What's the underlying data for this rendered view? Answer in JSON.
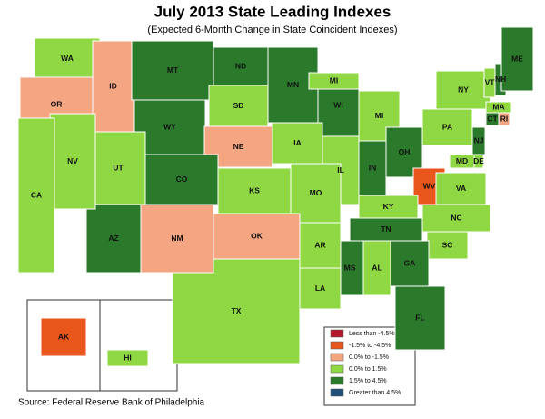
{
  "title": "July 2013 State Leading Indexes",
  "subtitle": "(Expected 6-Month Change in State Coincident Indexes)",
  "source": "Source: Federal Reserve Bank of Philadelphia",
  "legend": [
    {
      "label": "Less than -4.5%",
      "color": "#b2182b"
    },
    {
      "label": "-1.5% to -4.5%",
      "color": "#e8561c"
    },
    {
      "label": "0.0% to -1.5%",
      "color": "#f4a582"
    },
    {
      "label": "0.0% to  1.5%",
      "color": "#8fd843"
    },
    {
      "label": "1.5% to  4.5%",
      "color": "#2b7a2b"
    },
    {
      "label": "Greater than 4.5%",
      "color": "#1f4e79"
    }
  ],
  "states": [
    {
      "label": "WA",
      "color": "#8fd843"
    },
    {
      "label": "OR",
      "color": "#f4a582"
    },
    {
      "label": "ID",
      "color": "#f4a582"
    },
    {
      "label": "MT",
      "color": "#2b7a2b"
    },
    {
      "label": "ND",
      "color": "#2b7a2b"
    },
    {
      "label": "MN",
      "color": "#2b7a2b"
    },
    {
      "label": "WI",
      "color": "#2b7a2b"
    },
    {
      "label": "MI",
      "color": "#8fd843"
    },
    {
      "label": "MI",
      "color": "#8fd843"
    },
    {
      "label": "WY",
      "color": "#2b7a2b"
    },
    {
      "label": "SD",
      "color": "#8fd843"
    },
    {
      "label": "NE",
      "color": "#f4a582"
    },
    {
      "label": "IA",
      "color": "#8fd843"
    },
    {
      "label": "IL",
      "color": "#8fd843"
    },
    {
      "label": "IN",
      "color": "#2b7a2b"
    },
    {
      "label": "OH",
      "color": "#2b7a2b"
    },
    {
      "label": "PA",
      "color": "#8fd843"
    },
    {
      "label": "NY",
      "color": "#8fd843"
    },
    {
      "label": "VT",
      "color": "#8fd843"
    },
    {
      "label": "NH",
      "color": "#2b7a2b"
    },
    {
      "label": "ME",
      "color": "#2b7a2b"
    },
    {
      "label": "MA",
      "color": "#8fd843"
    },
    {
      "label": "CT",
      "color": "#2b7a2b"
    },
    {
      "label": "RI",
      "color": "#f4a582"
    },
    {
      "label": "NJ",
      "color": "#2b7a2b"
    },
    {
      "label": "DE",
      "color": "#8fd843"
    },
    {
      "label": "MD",
      "color": "#8fd843"
    },
    {
      "label": "WV",
      "color": "#e8561c"
    },
    {
      "label": "VA",
      "color": "#8fd843"
    },
    {
      "label": "KY",
      "color": "#8fd843"
    },
    {
      "label": "TN",
      "color": "#2b7a2b"
    },
    {
      "label": "NC",
      "color": "#8fd843"
    },
    {
      "label": "SC",
      "color": "#8fd843"
    },
    {
      "label": "GA",
      "color": "#2b7a2b"
    },
    {
      "label": "FL",
      "color": "#2b7a2b"
    },
    {
      "label": "AL",
      "color": "#8fd843"
    },
    {
      "label": "MS",
      "color": "#2b7a2b"
    },
    {
      "label": "LA",
      "color": "#8fd843"
    },
    {
      "label": "AR",
      "color": "#8fd843"
    },
    {
      "label": "MO",
      "color": "#8fd843"
    },
    {
      "label": "KS",
      "color": "#8fd843"
    },
    {
      "label": "OK",
      "color": "#f4a582"
    },
    {
      "label": "TX",
      "color": "#8fd843"
    },
    {
      "label": "NM",
      "color": "#f4a582"
    },
    {
      "label": "CO",
      "color": "#2b7a2b"
    },
    {
      "label": "UT",
      "color": "#8fd843"
    },
    {
      "label": "AZ",
      "color": "#2b7a2b"
    },
    {
      "label": "NV",
      "color": "#8fd843"
    },
    {
      "label": "CA",
      "color": "#8fd843"
    },
    {
      "label": "AK",
      "color": "#e8561c"
    },
    {
      "label": "HI",
      "color": "#8fd843"
    }
  ]
}
